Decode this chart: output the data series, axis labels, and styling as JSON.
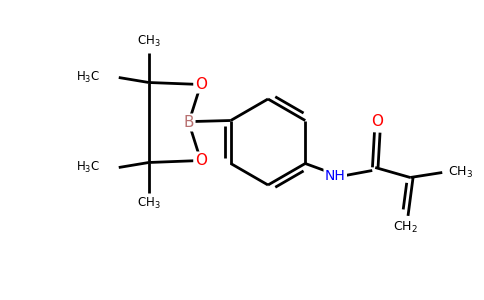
{
  "background_color": "#ffffff",
  "atom_colors": {
    "C": "#000000",
    "H": "#000000",
    "O": "#ff0000",
    "N": "#0000ff",
    "B": "#b87070"
  },
  "line_color": "#000000",
  "line_width": 2.0,
  "figsize": [
    4.84,
    3.0
  ],
  "dpi": 100
}
